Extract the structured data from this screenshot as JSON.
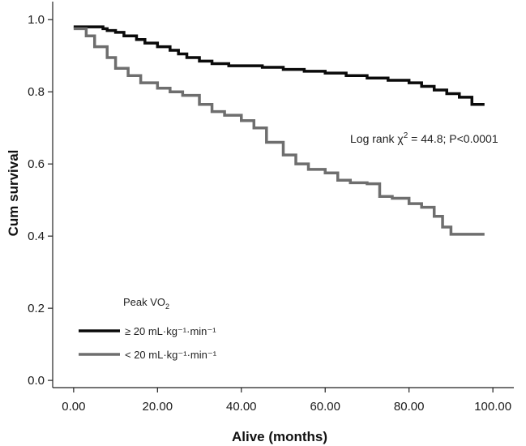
{
  "chart_data": {
    "type": "line",
    "xlabel": "Alive (months)",
    "ylabel": "Cum survival",
    "xlim": [
      -5,
      105
    ],
    "ylim": [
      -0.02,
      1.05
    ],
    "x_ticks": [
      "0.00",
      "20.00",
      "40.00",
      "60.00",
      "80.00",
      "100.00"
    ],
    "x_tick_values": [
      0,
      20,
      40,
      60,
      80,
      100
    ],
    "y_ticks": [
      "0.0",
      "0.2",
      "0.4",
      "0.6",
      "0.8",
      "1.0"
    ],
    "y_tick_values": [
      0,
      0.2,
      0.4,
      0.6,
      0.8,
      1.0
    ],
    "annotation": {
      "prefix": "Log rank χ",
      "sup": "2",
      "suffix": " = 44.8; P<0.0001"
    },
    "legend": {
      "title": "Peak VO",
      "title_sub": "2",
      "placement": "bottom-left"
    },
    "series": [
      {
        "name": "≥ 20 mL·kg⁻¹·min⁻¹",
        "color": "#0a0a0a",
        "step": true,
        "x": [
          0,
          5,
          7,
          8,
          10,
          12,
          15,
          17,
          20,
          23,
          25,
          27,
          30,
          33,
          37,
          45,
          50,
          55,
          60,
          65,
          70,
          75,
          80,
          83,
          86,
          89,
          92,
          95,
          98
        ],
        "y": [
          0.98,
          0.98,
          0.975,
          0.97,
          0.965,
          0.955,
          0.945,
          0.935,
          0.925,
          0.915,
          0.905,
          0.895,
          0.885,
          0.878,
          0.872,
          0.868,
          0.862,
          0.857,
          0.852,
          0.845,
          0.838,
          0.832,
          0.825,
          0.815,
          0.805,
          0.795,
          0.785,
          0.765,
          0.765
        ]
      },
      {
        "name": "< 20 mL·kg⁻¹·min⁻¹",
        "color": "#6e6e6e",
        "step": true,
        "x": [
          0,
          3,
          5,
          8,
          10,
          13,
          16,
          20,
          23,
          26,
          30,
          33,
          36,
          40,
          43,
          46,
          50,
          53,
          56,
          60,
          63,
          66,
          70,
          73,
          76,
          80,
          83,
          86,
          88,
          90,
          93,
          96,
          98
        ],
        "y": [
          0.975,
          0.955,
          0.925,
          0.895,
          0.865,
          0.845,
          0.825,
          0.81,
          0.8,
          0.79,
          0.765,
          0.745,
          0.735,
          0.72,
          0.7,
          0.66,
          0.625,
          0.6,
          0.585,
          0.575,
          0.555,
          0.548,
          0.545,
          0.51,
          0.505,
          0.49,
          0.48,
          0.455,
          0.425,
          0.405,
          0.405,
          0.405,
          0.405
        ]
      }
    ]
  }
}
